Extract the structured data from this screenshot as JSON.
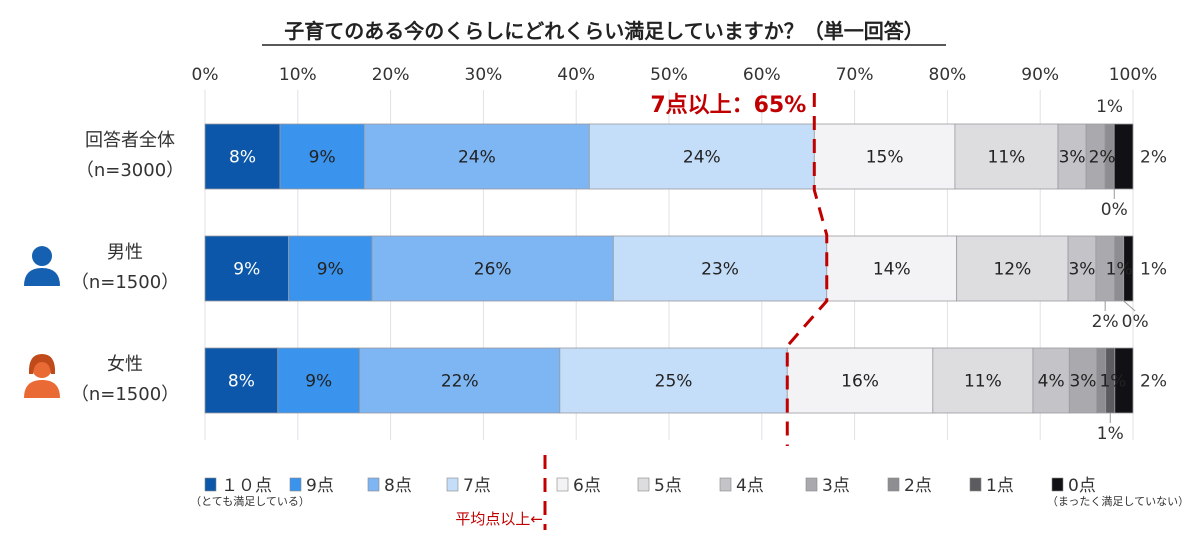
{
  "chart_data": {
    "type": "bar",
    "orientation": "horizontal-stacked-100",
    "title": "子育てのある今のくらしにどれくらい満足していますか？（単一回答）",
    "x_ticks": [
      "0%",
      "10%",
      "20%",
      "30%",
      "40%",
      "50%",
      "60%",
      "70%",
      "80%",
      "90%",
      "100%"
    ],
    "xlim": [
      0,
      100
    ],
    "grid": true,
    "legend_position": "bottom",
    "categories": [
      {
        "label": "回答者全体",
        "n": "（n=3000）",
        "icon": ""
      },
      {
        "label": "男性",
        "n": "（n=1500）",
        "icon": "male-person-icon"
      },
      {
        "label": "女性",
        "n": "（n=1500）",
        "icon": "female-person-icon"
      }
    ],
    "series": [
      {
        "name": "１０点",
        "sub": "（とても満足している）",
        "color": "#0c57a9",
        "values": [
          8,
          9,
          8
        ],
        "label_color": "#ffffff"
      },
      {
        "name": "9点",
        "color": "#3a93ec",
        "values": [
          9,
          9,
          9
        ],
        "label_color": "#222222"
      },
      {
        "name": "8点",
        "color": "#7db6f2",
        "values": [
          24,
          26,
          22
        ],
        "label_color": "#222222"
      },
      {
        "name": "7点",
        "color": "#c4ddf8",
        "values": [
          24,
          23,
          25
        ],
        "label_color": "#222222"
      },
      {
        "name": "6点",
        "color": "#f3f2f4",
        "values": [
          15,
          14,
          16
        ],
        "label_color": "#222222"
      },
      {
        "name": "5点",
        "color": "#dddcdf",
        "values": [
          11,
          12,
          11
        ],
        "label_color": "#222222"
      },
      {
        "name": "4点",
        "color": "#c4c3c7",
        "values": [
          3,
          3,
          4
        ],
        "label_color": "#222222"
      },
      {
        "name": "3点",
        "color": "#aaa9ad",
        "values": [
          2,
          2,
          3
        ],
        "label_color": "#222222"
      },
      {
        "name": "2点",
        "color": "#8e8d91",
        "values": [
          1,
          1,
          1
        ],
        "label_color": "#222222"
      },
      {
        "name": "1点",
        "color": "#5c5b5f",
        "values": [
          0,
          0,
          1
        ],
        "label_color": "#222222"
      },
      {
        "name": "0点",
        "sub": "（まったく満足していない）",
        "color": "#111015",
        "values": [
          2,
          1,
          2
        ],
        "label_color": "#222222"
      }
    ],
    "inside_labels": [
      [
        "8%",
        "9%",
        "24%",
        "24%",
        "15%",
        "11%",
        "3%",
        "2%",
        "",
        "",
        ""
      ],
      [
        "9%",
        "9%",
        "26%",
        "23%",
        "14%",
        "12%",
        "3%",
        "",
        "1%",
        "",
        ""
      ],
      [
        "8%",
        "9%",
        "22%",
        "25%",
        "16%",
        "11%",
        "4%",
        "3%",
        "1%",
        "",
        ""
      ]
    ],
    "outside_labels": [
      {
        "row": 0,
        "series": 8,
        "text": "1%",
        "position": "above"
      },
      {
        "row": 0,
        "series": 9,
        "text": "0%",
        "position": "below"
      },
      {
        "row": 0,
        "series": 10,
        "text": "2%",
        "position": "right"
      },
      {
        "row": 1,
        "series": 7,
        "text": "2%",
        "position": "below"
      },
      {
        "row": 1,
        "series": 9,
        "text": "0%",
        "position": "below"
      },
      {
        "row": 1,
        "series": 10,
        "text": "1%",
        "position": "right"
      },
      {
        "row": 2,
        "series": 9,
        "text": "1%",
        "position": "below"
      },
      {
        "row": 2,
        "series": 10,
        "text": "2%",
        "position": "right"
      }
    ],
    "annotation": {
      "text": "7点以上：65%",
      "color": "#c00000"
    },
    "legend_annotation": "平均点以上←"
  }
}
